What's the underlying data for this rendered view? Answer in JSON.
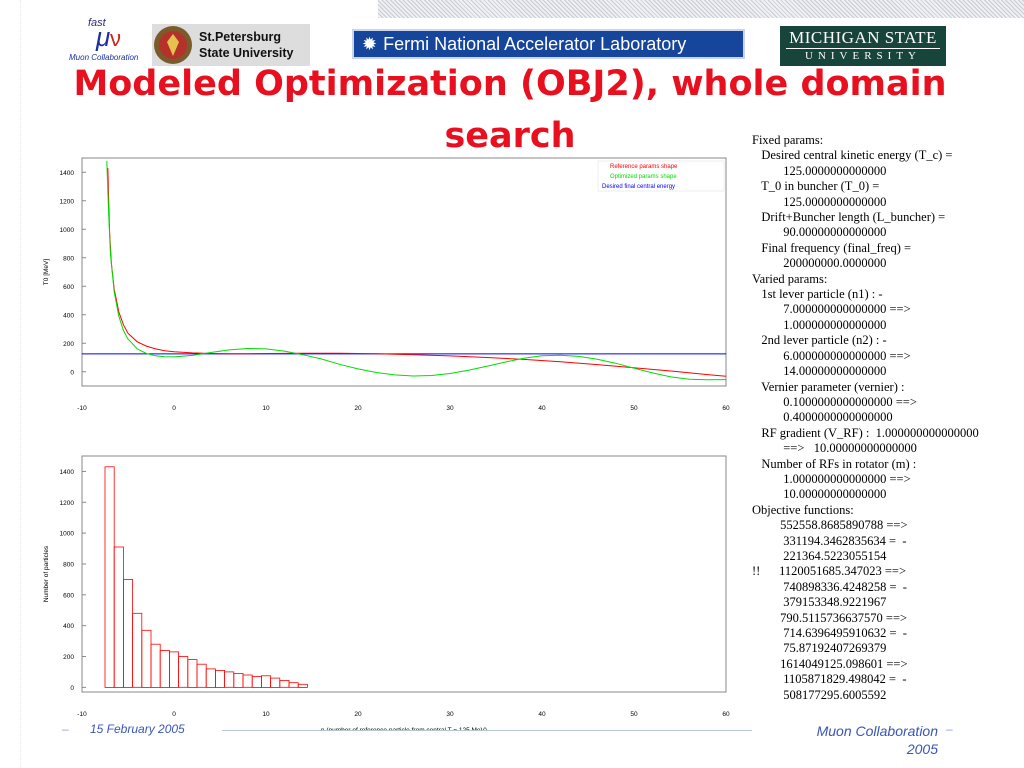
{
  "title": "Modeled Optimization (OBJ2), whole domain search",
  "logos": {
    "muon_lines": [
      "fast",
      "Muon Collaboration"
    ],
    "spbu_lines": [
      "St.Petersburg",
      "State University"
    ],
    "fnal": "Fermi National Accelerator Laboratory",
    "msu_lines": [
      "MICHIGAN STATE",
      "UNIVERSITY"
    ]
  },
  "params_text": [
    "Fixed params:",
    "   Desired central kinetic energy (T_c) =",
    "          125.0000000000000",
    "   T_0 in buncher (T_0) =",
    "          125.0000000000000",
    "   Drift+Buncher length (L_buncher) =",
    "          90.00000000000000",
    "   Final frequency (final_freq) =",
    "          200000000.0000000",
    "Varied params:",
    "   1st lever particle (n1) : -",
    "          7.000000000000000 ==>",
    "          1.000000000000000",
    "   2nd lever particle (n2) : -",
    "          6.000000000000000 ==>",
    "          14.00000000000000",
    "   Vernier parameter (vernier) :",
    "          0.1000000000000000 ==>",
    "          0.4000000000000000",
    "   RF gradient (V_RF) :  1.000000000000000",
    "          ==>   10.00000000000000",
    "   Number of RFs in rotator (m) :",
    "          1.000000000000000 ==>",
    "          10.00000000000000",
    "Objective functions:",
    "         552558.8685890788 ==>",
    "          331194.3462835634 =  -",
    "          221364.5223055154",
    "!!      1120051685.347023 ==>",
    "          740898336.4248258 =  -",
    "          379153348.9221967",
    "         790.5115736637570 ==>",
    "          714.6396495910632 =  -",
    "          75.87192407269379",
    "         1614049125.098601 ==>",
    "          1105871829.498042 =  -",
    "          508177295.6005592"
  ],
  "footer": {
    "date": "15 February 2005",
    "collab_line1": "Muon Collaboration",
    "collab_line2": "2005"
  },
  "colors": {
    "title": "#e8101f",
    "reference": "#ff0000",
    "optimized": "#00dd00",
    "desired": "#0000ff",
    "footer_text": "#3a55b8"
  },
  "chart_data": [
    {
      "type": "line",
      "title": "",
      "xlabel": "",
      "ylabel": "T0 [MeV]",
      "xlim": [
        -10,
        60
      ],
      "ylim": [
        -100,
        1500
      ],
      "xticks": [
        -10,
        0,
        10,
        20,
        30,
        40,
        50,
        60
      ],
      "yticks": [
        0,
        200,
        400,
        600,
        800,
        1000,
        1200,
        1400
      ],
      "grid": false,
      "legend_position": "top-right",
      "series": [
        {
          "name": "Reference params shape",
          "color": "#ff0000",
          "x": [
            -7.2,
            -7,
            -6.8,
            -6.5,
            -6,
            -5.5,
            -5,
            -4,
            -3,
            -2,
            -1,
            0,
            2,
            4,
            6,
            8,
            10,
            14,
            18,
            22,
            26,
            30,
            34,
            38,
            42,
            46,
            50,
            54,
            58,
            60
          ],
          "y": [
            1430,
            980,
            760,
            580,
            420,
            330,
            270,
            210,
            180,
            160,
            148,
            140,
            132,
            128,
            127,
            127,
            128,
            130,
            130,
            127,
            120,
            111,
            100,
            87,
            70,
            50,
            28,
            5,
            -20,
            -32
          ]
        },
        {
          "name": "Optimized params shape",
          "color": "#00dd00",
          "x": [
            -7.3,
            -7.1,
            -6.9,
            -6.5,
            -6,
            -5.5,
            -5,
            -4,
            -3,
            -2,
            -1,
            0,
            2,
            4,
            6,
            8,
            10,
            12,
            14,
            16,
            18,
            20,
            22,
            24,
            26,
            28,
            30,
            32,
            34,
            36,
            38,
            40,
            42,
            44,
            46,
            48,
            50,
            52,
            54,
            56,
            58,
            60
          ],
          "y": [
            1480,
            1100,
            820,
            560,
            390,
            290,
            230,
            160,
            128,
            112,
            105,
            104,
            115,
            135,
            153,
            163,
            160,
            145,
            120,
            90,
            52,
            20,
            -5,
            -22,
            -30,
            -26,
            -12,
            10,
            38,
            68,
            95,
            112,
            116,
            108,
            88,
            60,
            25,
            -8,
            -36,
            -52,
            -56,
            -55
          ]
        },
        {
          "name": "Desired final central energy",
          "color": "#0000ff",
          "x": [
            -10,
            60
          ],
          "y": [
            125,
            125
          ]
        }
      ]
    },
    {
      "type": "bar",
      "title": "",
      "xlabel": "n (number of reference particle from central T = 125 MeV)",
      "ylabel": "Number of particles",
      "xlim": [
        -10,
        60
      ],
      "ylim": [
        -30,
        1500
      ],
      "xticks": [
        -10,
        0,
        10,
        20,
        30,
        40,
        50,
        60
      ],
      "yticks": [
        0,
        200,
        400,
        600,
        800,
        1000,
        1200,
        1400
      ],
      "grid": false,
      "bar_color": "#ff0000",
      "x": [
        -7,
        -6,
        -5,
        -4,
        -3,
        -2,
        -1,
        0,
        1,
        2,
        3,
        4,
        5,
        6,
        7,
        8,
        9,
        10,
        11,
        12,
        13,
        14
      ],
      "values": [
        1430,
        910,
        700,
        480,
        370,
        280,
        240,
        230,
        200,
        180,
        150,
        120,
        110,
        100,
        90,
        80,
        70,
        75,
        60,
        45,
        30,
        20
      ]
    }
  ]
}
